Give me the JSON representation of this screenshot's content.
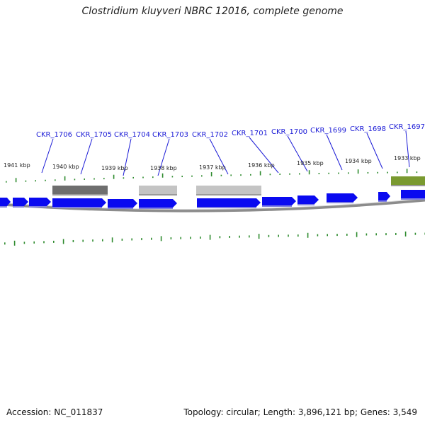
{
  "title": "Clostridium kluyveri NBRC 12016, complete genome",
  "footer": {
    "accession": "Accession: NC_011837",
    "summary": "Topology: circular; Length: 3,896,121 bp; Genes: 3,549"
  },
  "colors": {
    "gene_blue": "#0a0af0",
    "label_blue": "#1a1ad6",
    "tick_green": "#2e8b2e",
    "feature_dark": "#6e6e6e",
    "feature_light": "#c4c4c4",
    "feature_green": "#7a9a30",
    "backbone": "#8c8c8c"
  },
  "kbp_labels": [
    "1941 kbp",
    "1940 kbp",
    "1939 kbp",
    "1938 kbp",
    "1937 kbp",
    "1936 kbp",
    "1935 kbp",
    "1934 kbp",
    "1933 kbp"
  ],
  "gene_labels": [
    "CKR_1706",
    "CKR_1705",
    "CKR_1704",
    "CKR_1703",
    "CKR_1702",
    "CKR_1701",
    "CKR_1700",
    "CKR_1699",
    "CKR_1698",
    "CKR_1697"
  ]
}
